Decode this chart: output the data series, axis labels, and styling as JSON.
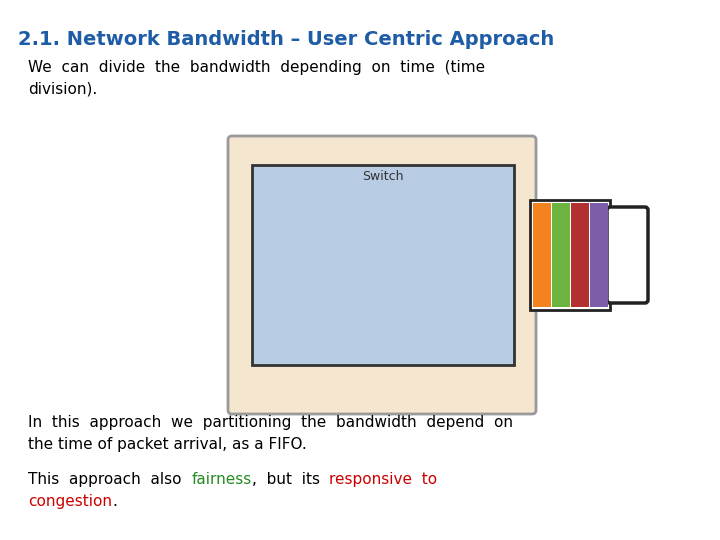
{
  "title": "2.1. Network Bandwidth – User Centric Approach",
  "title_color": "#1F5CA6",
  "title_fontsize": 14,
  "bg_color": "#ffffff",
  "para1_line1": "We  can  divide  the  bandwidth  depending  on  time  (time",
  "para1_line2": "division).",
  "para2_line1": "In  this  approach  we  partitioning  the  bandwidth  depend  on",
  "para2_line2": "the time of packet arrival, as a FIFO.",
  "text_fontsize": 11,
  "outer_box_color": "#F5E6D0",
  "inner_box_color": "#B8CCE4",
  "bar_colors": [
    "#F4831F",
    "#6DB33F",
    "#B33030",
    "#7B5EA7"
  ],
  "switch_label": "Switch",
  "switch_label_fontsize": 9
}
